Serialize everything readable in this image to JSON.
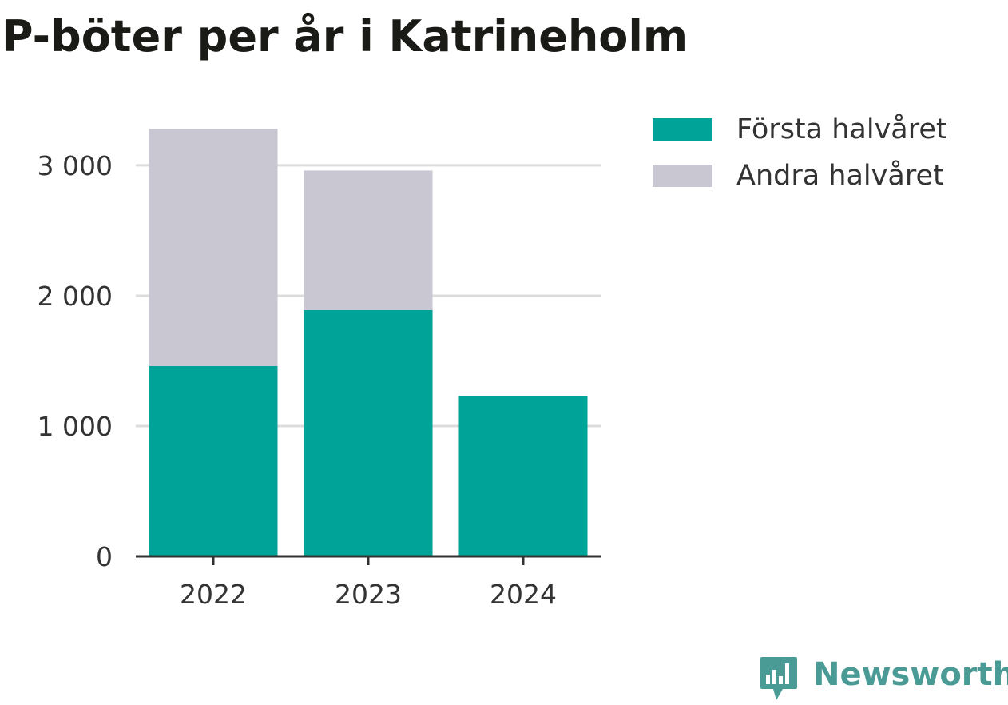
{
  "chart_data": {
    "type": "bar",
    "stacked": true,
    "title": "P-böter per år i Katrineholm",
    "categories": [
      "2022",
      "2023",
      "2024"
    ],
    "series": [
      {
        "name": "Första halvåret",
        "color": "#00a398",
        "values": [
          1460,
          1890,
          1230
        ]
      },
      {
        "name": "Andra halvåret",
        "color": "#c8c7d2",
        "values": [
          1820,
          1070,
          null
        ]
      }
    ],
    "yticks": [
      0,
      1000,
      2000,
      3000
    ],
    "ytick_labels": [
      "0",
      "1 000",
      "2 000",
      "3 000"
    ],
    "ylim": [
      0,
      3300
    ],
    "grid": true,
    "legend_position": "right",
    "xlabel": "",
    "ylabel": ""
  },
  "brand": {
    "name": "Newsworthy",
    "icon": "newsworthy-logo-icon"
  },
  "colors": {
    "gridline": "#dcdcde",
    "axis": "#333333",
    "tick_text": "#333333",
    "title": "#1a1a17",
    "brand": "#4a9a95"
  }
}
